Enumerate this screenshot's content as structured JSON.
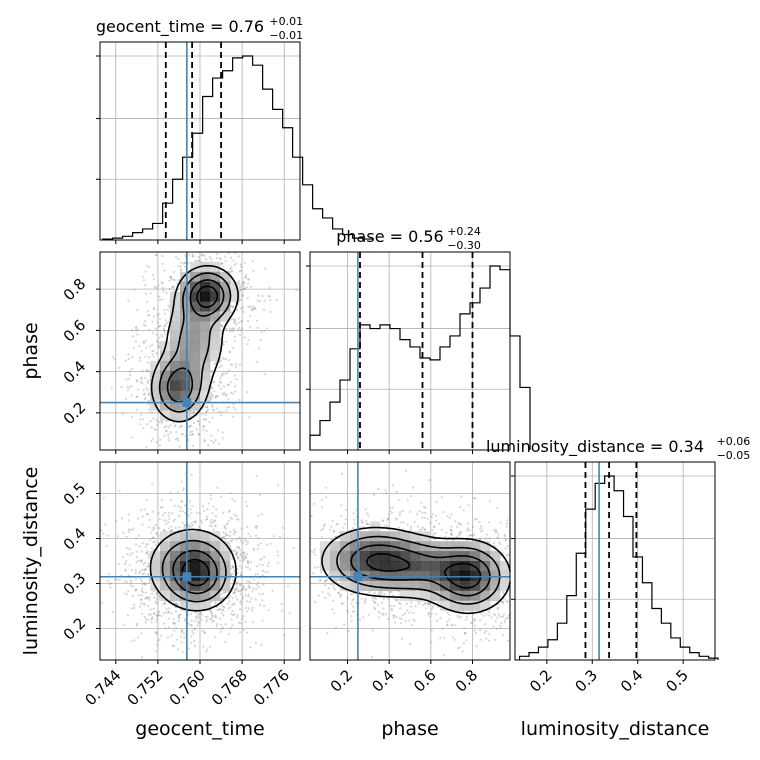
{
  "chart_data": {
    "type": "corner",
    "truth_color": "#4682b4",
    "contour_color": "#000000",
    "parameters": [
      {
        "name": "geocent_time",
        "label": "geocent_time",
        "range": [
          0.741,
          0.779
        ],
        "ticks": [
          "0.744",
          "0.752",
          "0.760",
          "0.768",
          "0.776"
        ],
        "tick_values": [
          0.744,
          0.752,
          0.76,
          0.768,
          0.776
        ],
        "truth": 0.7575,
        "title_main": "geocent_time = 0.76",
        "title_sup": "+0.01",
        "title_sub": "−0.01",
        "quantiles": [
          0.7535,
          0.7585,
          0.764
        ],
        "hist_start": 0.7415,
        "hist_width": 0.0019,
        "hist_counts": [
          0.005,
          0.01,
          0.02,
          0.04,
          0.06,
          0.09,
          0.2,
          0.33,
          0.45,
          0.58,
          0.78,
          0.88,
          0.92,
          0.99,
          1.0,
          0.95,
          0.82,
          0.71,
          0.61,
          0.45,
          0.3,
          0.17,
          0.12,
          0.06,
          0.03,
          0.01,
          0.005
        ]
      },
      {
        "name": "phase",
        "label": "phase",
        "range": [
          0.02,
          0.98
        ],
        "ticks": [
          "0.2",
          "0.4",
          "0.6",
          "0.8"
        ],
        "tick_values": [
          0.2,
          0.4,
          0.6,
          0.8
        ],
        "truth": 0.25,
        "title_main": "phase = 0.56",
        "title_sup": "+0.24",
        "title_sub": "−0.30",
        "quantiles": [
          0.26,
          0.56,
          0.8
        ],
        "hist_start": 0.02,
        "hist_width": 0.048,
        "hist_counts": [
          0.08,
          0.16,
          0.26,
          0.38,
          0.55,
          0.68,
          0.66,
          0.68,
          0.66,
          0.6,
          0.56,
          0.5,
          0.49,
          0.56,
          0.62,
          0.74,
          0.8,
          0.88,
          1.0,
          0.98,
          0.62,
          0.34
        ]
      },
      {
        "name": "luminosity_distance",
        "label": "luminosity_distance",
        "range": [
          0.13,
          0.57
        ],
        "ticks": [
          "0.2",
          "0.3",
          "0.4",
          "0.5"
        ],
        "tick_values": [
          0.2,
          0.3,
          0.4,
          0.5
        ],
        "truth": 0.315,
        "title_main": "luminosity_distance = 0.34",
        "title_sup": "+0.06",
        "title_sub": "−0.05",
        "quantiles": [
          0.285,
          0.337,
          0.397
        ],
        "hist_start": 0.14,
        "hist_width": 0.0208,
        "hist_counts": [
          0.02,
          0.04,
          0.07,
          0.11,
          0.2,
          0.35,
          0.58,
          0.82,
          0.96,
          1.0,
          0.92,
          0.78,
          0.56,
          0.42,
          0.28,
          0.2,
          0.12,
          0.07,
          0.04,
          0.02,
          0.01
        ]
      }
    ],
    "pair_panels": [
      {
        "x": "geocent_time",
        "y": "phase",
        "blobs": [
          {
            "cx": 0.7615,
            "cy": 0.77,
            "sx": 0.0028,
            "sy": 0.07,
            "w": 1.0
          },
          {
            "cx": 0.756,
            "cy": 0.32,
            "sx": 0.0027,
            "sy": 0.085,
            "w": 0.78
          },
          {
            "cx": 0.759,
            "cy": 0.55,
            "sx": 0.0032,
            "sy": 0.12,
            "w": 0.45
          }
        ]
      },
      {
        "x": "geocent_time",
        "y": "luminosity_distance",
        "blobs": [
          {
            "cx": 0.7585,
            "cy": 0.335,
            "sx": 0.0042,
            "sy": 0.045,
            "w": 1.0
          },
          {
            "cx": 0.76,
            "cy": 0.31,
            "sx": 0.003,
            "sy": 0.035,
            "w": 0.55
          }
        ]
      },
      {
        "x": "phase",
        "y": "luminosity_distance",
        "blobs": [
          {
            "cx": 0.33,
            "cy": 0.35,
            "sx": 0.13,
            "sy": 0.038,
            "w": 0.85
          },
          {
            "cx": 0.78,
            "cy": 0.315,
            "sx": 0.1,
            "sy": 0.04,
            "w": 1.0
          },
          {
            "cx": 0.55,
            "cy": 0.335,
            "sx": 0.12,
            "sy": 0.035,
            "w": 0.55
          }
        ]
      }
    ],
    "grid": true
  }
}
